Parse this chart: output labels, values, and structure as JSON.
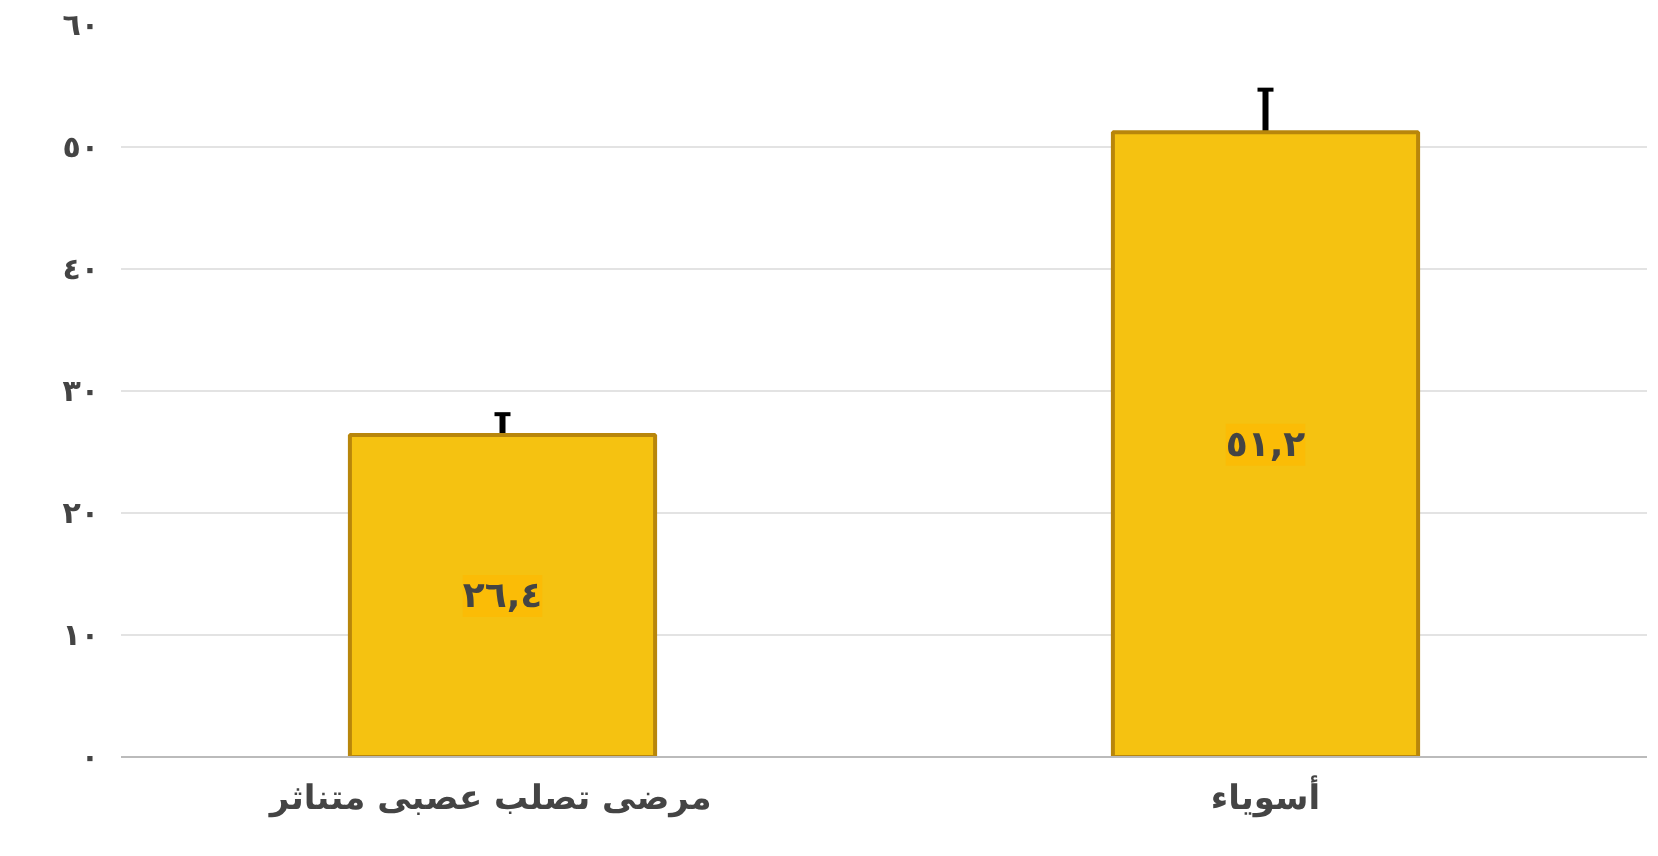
{
  "chart_data": {
    "type": "bar",
    "categories": [
      "مرضى تصلب  عصبى  متناثر",
      "أسوياء"
    ],
    "values": [
      26.4,
      51.2
    ],
    "errors": [
      1.7,
      3.5
    ],
    "value_labels": [
      "٢٦,٤",
      "٥١,٢"
    ],
    "color": "#f5c211",
    "ylim": [
      0,
      60
    ],
    "yticks": [
      {
        "value": 0,
        "label": "٠"
      },
      {
        "value": 10,
        "label": "١٠"
      },
      {
        "value": 20,
        "label": "٢٠"
      },
      {
        "value": 30,
        "label": "٣٠"
      },
      {
        "value": 40,
        "label": "٤٠"
      },
      {
        "value": 50,
        "label": "٥٠"
      },
      {
        "value": 60,
        "label": "٦٠"
      }
    ],
    "grid": "y"
  }
}
